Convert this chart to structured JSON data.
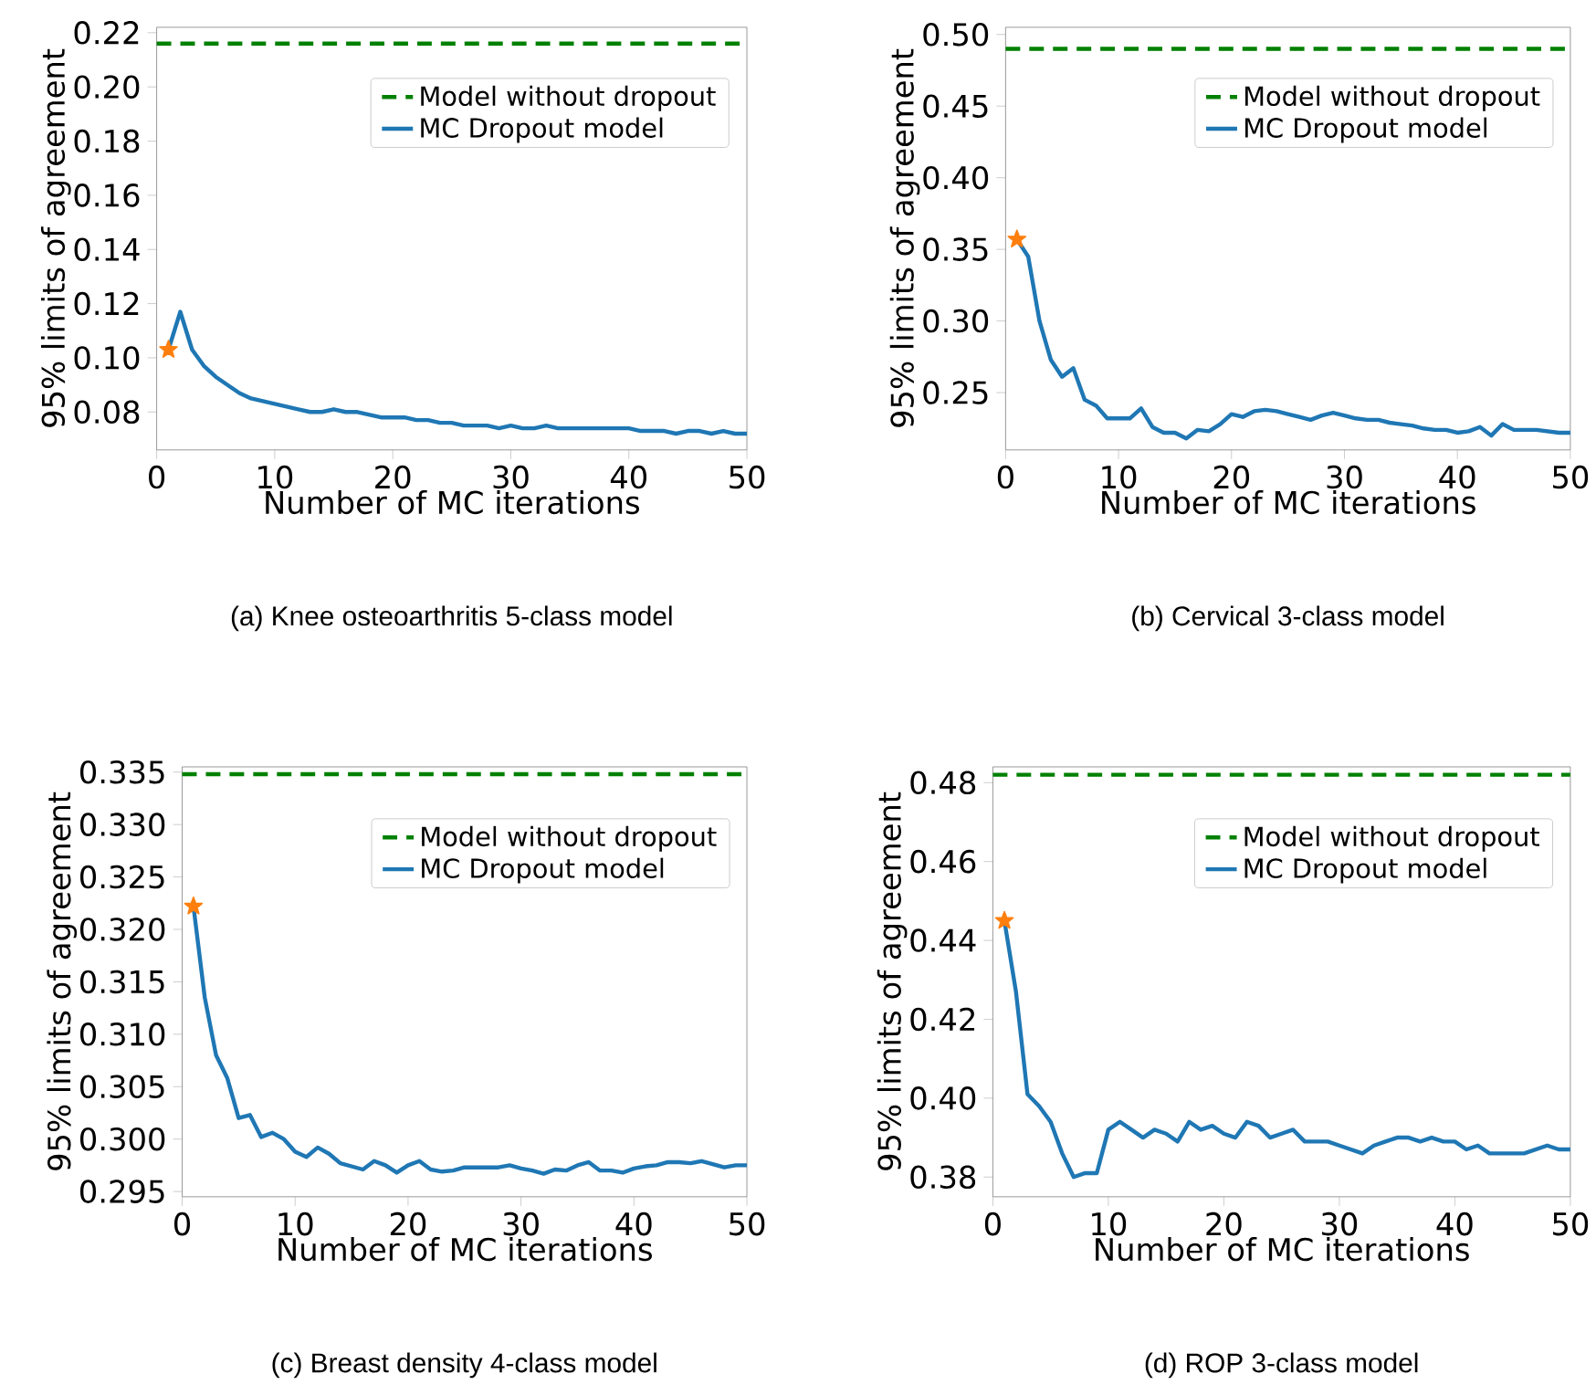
{
  "chart_data": [
    {
      "type": "line",
      "title": "(a) Knee osteoarthritis 5-class model",
      "xlabel": "Number of MC iterations",
      "ylabel": "95% limits of agreement",
      "legend": "top right",
      "xlim": [
        0,
        50
      ],
      "xticks": [
        0,
        10,
        20,
        30,
        40,
        50
      ],
      "ylim": [
        0.066,
        0.222
      ],
      "yticks": [
        0.08,
        {
          "value": 0.1,
          "label": "0.10"
        },
        0.12,
        0.14,
        0.16,
        0.18,
        {
          "value": 0.2,
          "label": "0.20"
        },
        0.22
      ],
      "ref_lines": [
        {
          "axis": "y",
          "value": 0.216,
          "label": "Model without dropout",
          "color": "#008000",
          "line_style": "dashed"
        }
      ],
      "x": [
        1,
        2,
        3,
        4,
        5,
        6,
        7,
        8,
        9,
        10,
        11,
        12,
        13,
        14,
        15,
        16,
        17,
        18,
        19,
        20,
        21,
        22,
        23,
        24,
        25,
        26,
        27,
        28,
        29,
        30,
        31,
        32,
        33,
        34,
        35,
        36,
        37,
        38,
        39,
        40,
        41,
        42,
        43,
        44,
        45,
        46,
        47,
        48,
        49,
        50
      ],
      "series": [
        {
          "name": "MC Dropout model",
          "color": "#1f77b4",
          "values": [
            0.103,
            0.117,
            0.103,
            0.097,
            0.093,
            0.09,
            0.087,
            0.085,
            0.084,
            0.083,
            0.082,
            0.081,
            0.08,
            0.08,
            0.081,
            0.08,
            0.08,
            0.079,
            0.078,
            0.078,
            0.078,
            0.077,
            0.077,
            0.076,
            0.076,
            0.075,
            0.075,
            0.075,
            0.074,
            0.075,
            0.074,
            0.074,
            0.075,
            0.074,
            0.074,
            0.074,
            0.074,
            0.074,
            0.074,
            0.074,
            0.073,
            0.073,
            0.073,
            0.072,
            0.073,
            0.073,
            0.072,
            0.073,
            0.072,
            0.072
          ]
        },
        {
          "type": "scatter",
          "values": [
            0.103,
            null,
            null,
            null,
            null,
            null,
            null,
            null,
            null,
            null,
            null,
            null,
            null,
            null,
            null,
            null,
            null,
            null,
            null,
            null,
            null,
            null,
            null,
            null,
            null,
            null,
            null,
            null,
            null,
            null,
            null,
            null,
            null,
            null,
            null,
            null,
            null,
            null,
            null,
            null,
            null,
            null,
            null,
            null,
            null,
            null,
            null,
            null,
            null,
            null
          ],
          "color": "#ff7f0e",
          "marker": "star"
        }
      ]
    },
    {
      "type": "line",
      "title": "(b) Cervical 3-class model",
      "xlabel": "Number of MC iterations",
      "ylabel": "95% limits of agreement",
      "legend": "top right",
      "xlim": [
        0,
        50
      ],
      "xticks": [
        0,
        10,
        20,
        30,
        40,
        50
      ],
      "ylim": [
        0.21,
        0.505
      ],
      "yticks": [
        0.25,
        {
          "value": 0.3,
          "label": "0.30"
        },
        0.35,
        {
          "value": 0.4,
          "label": "0.40"
        },
        0.45,
        {
          "value": 0.5,
          "label": "0.50"
        }
      ],
      "ref_lines": [
        {
          "axis": "y",
          "value": 0.49,
          "label": "Model without dropout",
          "color": "#008000",
          "line_style": "dashed"
        }
      ],
      "x": [
        1,
        2,
        3,
        4,
        5,
        6,
        7,
        8,
        9,
        10,
        11,
        12,
        13,
        14,
        15,
        16,
        17,
        18,
        19,
        20,
        21,
        22,
        23,
        24,
        25,
        26,
        27,
        28,
        29,
        30,
        31,
        32,
        33,
        34,
        35,
        36,
        37,
        38,
        39,
        40,
        41,
        42,
        43,
        44,
        45,
        46,
        47,
        48,
        49,
        50
      ],
      "series": [
        {
          "name": "MC Dropout model",
          "color": "#1f77b4",
          "values": [
            0.357,
            0.345,
            0.3,
            0.273,
            0.261,
            0.267,
            0.245,
            0.241,
            0.232,
            0.232,
            0.232,
            0.239,
            0.226,
            0.222,
            0.222,
            0.218,
            0.224,
            0.223,
            0.228,
            0.235,
            0.233,
            0.237,
            0.238,
            0.237,
            0.235,
            0.233,
            0.231,
            0.234,
            0.236,
            0.234,
            0.232,
            0.231,
            0.231,
            0.229,
            0.228,
            0.227,
            0.225,
            0.224,
            0.224,
            0.222,
            0.223,
            0.226,
            0.22,
            0.228,
            0.224,
            0.224,
            0.224,
            0.223,
            0.222,
            0.222
          ]
        },
        {
          "type": "scatter",
          "values": [
            0.357,
            null,
            null,
            null,
            null,
            null,
            null,
            null,
            null,
            null,
            null,
            null,
            null,
            null,
            null,
            null,
            null,
            null,
            null,
            null,
            null,
            null,
            null,
            null,
            null,
            null,
            null,
            null,
            null,
            null,
            null,
            null,
            null,
            null,
            null,
            null,
            null,
            null,
            null,
            null,
            null,
            null,
            null,
            null,
            null,
            null,
            null,
            null,
            null,
            null
          ],
          "color": "#ff7f0e",
          "marker": "star"
        }
      ]
    },
    {
      "type": "line",
      "title": "(c) Breast density 4-class model",
      "xlabel": "Number of MC iterations",
      "ylabel": "95% limits of agreement",
      "legend": "top right",
      "xlim": [
        0,
        50
      ],
      "xticks": [
        0,
        10,
        20,
        30,
        40,
        50
      ],
      "ylim": [
        0.2945,
        0.3355
      ],
      "yticks": [
        0.295,
        {
          "value": 0.3,
          "label": "0.300"
        },
        0.305,
        {
          "value": 0.31,
          "label": "0.310"
        },
        0.315,
        {
          "value": 0.32,
          "label": "0.320"
        },
        0.325,
        {
          "value": 0.33,
          "label": "0.330"
        },
        0.335
      ],
      "ref_lines": [
        {
          "axis": "y",
          "value": 0.3348,
          "label": "Model without dropout",
          "color": "#008000",
          "line_style": "dashed"
        }
      ],
      "x": [
        1,
        2,
        3,
        4,
        5,
        6,
        7,
        8,
        9,
        10,
        11,
        12,
        13,
        14,
        15,
        16,
        17,
        18,
        19,
        20,
        21,
        22,
        23,
        24,
        25,
        26,
        27,
        28,
        29,
        30,
        31,
        32,
        33,
        34,
        35,
        36,
        37,
        38,
        39,
        40,
        41,
        42,
        43,
        44,
        45,
        46,
        47,
        48,
        49,
        50
      ],
      "series": [
        {
          "name": "MC Dropout model",
          "color": "#1f77b4",
          "values": [
            0.3222,
            0.3135,
            0.308,
            0.3058,
            0.302,
            0.3023,
            0.3002,
            0.3006,
            0.3,
            0.2988,
            0.2983,
            0.2992,
            0.2986,
            0.2977,
            0.2974,
            0.2971,
            0.2979,
            0.2975,
            0.2968,
            0.2975,
            0.2979,
            0.2971,
            0.2969,
            0.297,
            0.2973,
            0.2973,
            0.2973,
            0.2973,
            0.2975,
            0.2972,
            0.297,
            0.2967,
            0.2971,
            0.297,
            0.2975,
            0.2978,
            0.297,
            0.297,
            0.2968,
            0.2972,
            0.2974,
            0.2975,
            0.2978,
            0.2978,
            0.2977,
            0.2979,
            0.2976,
            0.2973,
            0.2975,
            0.2975
          ]
        },
        {
          "type": "scatter",
          "values": [
            0.3222,
            null,
            null,
            null,
            null,
            null,
            null,
            null,
            null,
            null,
            null,
            null,
            null,
            null,
            null,
            null,
            null,
            null,
            null,
            null,
            null,
            null,
            null,
            null,
            null,
            null,
            null,
            null,
            null,
            null,
            null,
            null,
            null,
            null,
            null,
            null,
            null,
            null,
            null,
            null,
            null,
            null,
            null,
            null,
            null,
            null,
            null,
            null,
            null,
            null
          ],
          "color": "#ff7f0e",
          "marker": "star"
        }
      ]
    },
    {
      "type": "line",
      "title": "(d) ROP 3-class model",
      "xlabel": "Number of MC iterations",
      "ylabel": "95% limits of agreement",
      "legend": "top right",
      "xlim": [
        0,
        50
      ],
      "xticks": [
        0,
        10,
        20,
        30,
        40,
        50
      ],
      "ylim": [
        0.375,
        0.484
      ],
      "yticks": [
        0.38,
        {
          "value": 0.4,
          "label": "0.40"
        },
        0.42,
        0.44,
        0.46,
        0.48
      ],
      "ref_lines": [
        {
          "axis": "y",
          "value": 0.482,
          "label": "Model without dropout",
          "color": "#008000",
          "line_style": "dashed"
        }
      ],
      "x": [
        1,
        2,
        3,
        4,
        5,
        6,
        7,
        8,
        9,
        10,
        11,
        12,
        13,
        14,
        15,
        16,
        17,
        18,
        19,
        20,
        21,
        22,
        23,
        24,
        25,
        26,
        27,
        28,
        29,
        30,
        31,
        32,
        33,
        34,
        35,
        36,
        37,
        38,
        39,
        40,
        41,
        42,
        43,
        44,
        45,
        46,
        47,
        48,
        49,
        50
      ],
      "series": [
        {
          "name": "MC Dropout model",
          "color": "#1f77b4",
          "values": [
            0.445,
            0.427,
            0.401,
            0.398,
            0.394,
            0.386,
            0.38,
            0.381,
            0.381,
            0.392,
            0.394,
            0.392,
            0.39,
            0.392,
            0.391,
            0.389,
            0.394,
            0.392,
            0.393,
            0.391,
            0.39,
            0.394,
            0.393,
            0.39,
            0.391,
            0.392,
            0.389,
            0.389,
            0.389,
            0.388,
            0.387,
            0.386,
            0.388,
            0.389,
            0.39,
            0.39,
            0.389,
            0.39,
            0.389,
            0.389,
            0.387,
            0.388,
            0.386,
            0.386,
            0.386,
            0.386,
            0.387,
            0.388,
            0.387,
            0.387
          ]
        },
        {
          "type": "scatter",
          "values": [
            0.445,
            null,
            null,
            null,
            null,
            null,
            null,
            null,
            null,
            null,
            null,
            null,
            null,
            null,
            null,
            null,
            null,
            null,
            null,
            null,
            null,
            null,
            null,
            null,
            null,
            null,
            null,
            null,
            null,
            null,
            null,
            null,
            null,
            null,
            null,
            null,
            null,
            null,
            null,
            null,
            null,
            null,
            null,
            null,
            null,
            null,
            null,
            null,
            null,
            null
          ],
          "color": "#ff7f0e",
          "marker": "star"
        }
      ]
    }
  ]
}
